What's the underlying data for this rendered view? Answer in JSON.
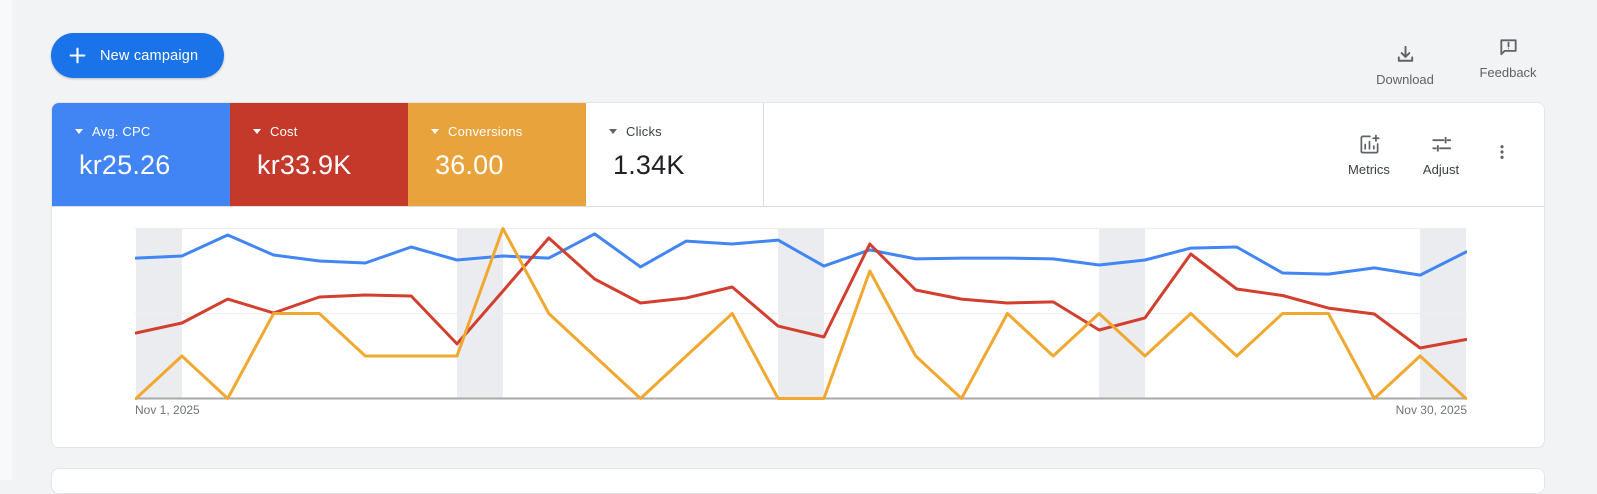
{
  "toolbar": {
    "new_campaign": "New campaign",
    "download": "Download",
    "feedback": "Feedback",
    "accent_color": "#1a73e8"
  },
  "scorecards": [
    {
      "label": "Avg. CPC",
      "value": "kr25.26",
      "bg": "#4184f3",
      "fg": "#ffffff"
    },
    {
      "label": "Cost",
      "value": "kr33.9K",
      "bg": "#c5392b",
      "fg": "#ffffff"
    },
    {
      "label": "Conversions",
      "value": "36.00",
      "bg": "#e8a33d",
      "fg": "#ffffff"
    },
    {
      "label": "Clicks",
      "value": "1.34K",
      "bg": "#ffffff",
      "fg": "#202124",
      "label_color": "#3c4043",
      "caret_color": "#5f6368"
    }
  ],
  "chart_controls": {
    "metrics": "Metrics",
    "adjust": "Adjust"
  },
  "chart_data": {
    "type": "line",
    "x_days": 30,
    "x_start_label": "Nov 1, 2025",
    "x_end_label": "Nov 30, 2025",
    "weekend_band_day_index_ranges": [
      [
        0,
        1
      ],
      [
        7,
        8
      ],
      [
        14,
        15
      ],
      [
        21,
        22
      ],
      [
        28,
        29
      ]
    ],
    "value_scale": "percent_of_plot_height (no y-axis labels shown in chart)",
    "grid": {
      "band_color": "#eaecef",
      "gridline_color": "#edeff2",
      "axis_color": "#a8a8a8",
      "gridlines_at_percent": [
        0,
        50,
        100
      ]
    },
    "series": [
      {
        "name": "Avg. CPC",
        "color": "#4285f4",
        "ymax": 100,
        "values": [
          82.6,
          83.8,
          96.2,
          84.4,
          80.9,
          79.7,
          89.1,
          81.5,
          83.8,
          82.6,
          96.8,
          77.4,
          92.6,
          90.9,
          93.2,
          77.9,
          87.4,
          82.1,
          82.6,
          82.6,
          82.1,
          78.5,
          81.5,
          88.5,
          89.1,
          73.8,
          73.2,
          76.8,
          72.6,
          86.2
        ]
      },
      {
        "name": "Cost",
        "color": "#d23f2f",
        "ymax": 100,
        "values": [
          38.5,
          44.4,
          58.5,
          50.3,
          59.7,
          60.9,
          60.3,
          32.1,
          63.2,
          94.4,
          70.3,
          56.2,
          59.1,
          65.6,
          42.6,
          36.2,
          90.9,
          63.8,
          58.5,
          56.2,
          56.8,
          40.3,
          47.4,
          85.0,
          64.4,
          60.6,
          53.2,
          49.7,
          29.7,
          34.7
        ]
      },
      {
        "name": "Conversions",
        "color": "#f0a830",
        "ymax": 4,
        "values": [
          0,
          1,
          0,
          2,
          2,
          1,
          1,
          1,
          4,
          2,
          1,
          0,
          1,
          2,
          0,
          0,
          3,
          1,
          0,
          2,
          1,
          2,
          1,
          2,
          1,
          2,
          2,
          0,
          1,
          0
        ]
      }
    ]
  }
}
